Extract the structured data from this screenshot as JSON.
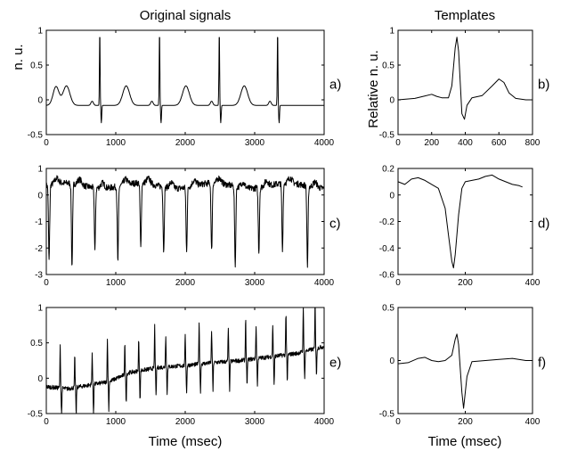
{
  "headers": {
    "left": "Original signals",
    "right": "Templates"
  },
  "ylabels": {
    "left": "n. u.",
    "right": "Relative n. u."
  },
  "xlabels": {
    "left": "Time (msec)",
    "right": "Time (msec)"
  },
  "chart_data": [
    {
      "id": "a",
      "type": "line",
      "panel_label": "a)",
      "xlim": [
        0,
        4000
      ],
      "ylim": [
        -0.5,
        1
      ],
      "xticks": [
        "0",
        "1000",
        "2000",
        "3000",
        "4000"
      ],
      "yticks": [
        "-0.5",
        "0",
        "0.5",
        "1"
      ],
      "series": [
        {
          "kind": "ecg",
          "beats": [
            770,
            1630,
            2490,
            3330
          ],
          "r_peak": 1.0,
          "q": -0.3,
          "noise": 0.0,
          "drift": 0.0
        }
      ]
    },
    {
      "id": "b",
      "type": "line",
      "panel_label": "b)",
      "xlim": [
        0,
        800
      ],
      "ylim": [
        -0.5,
        1
      ],
      "xticks": [
        "0",
        "200",
        "400",
        "600",
        "800"
      ],
      "yticks": [
        "-0.5",
        "0",
        "0.5",
        "1"
      ],
      "series": [
        {
          "kind": "template",
          "x": [
            0,
            100,
            150,
            200,
            230,
            260,
            300,
            320,
            340,
            350,
            360,
            380,
            395,
            410,
            440,
            500,
            560,
            600,
            630,
            660,
            700,
            760,
            800
          ],
          "y": [
            0.0,
            0.02,
            0.05,
            0.08,
            0.05,
            0.03,
            0.03,
            0.2,
            0.75,
            0.9,
            0.7,
            -0.2,
            -0.28,
            -0.08,
            0.03,
            0.06,
            0.2,
            0.3,
            0.25,
            0.1,
            0.02,
            0.0,
            0.0
          ]
        }
      ]
    },
    {
      "id": "c",
      "type": "line",
      "panel_label": "c)",
      "xlim": [
        0,
        4000
      ],
      "ylim": [
        -3,
        1
      ],
      "xticks": [
        "0",
        "1000",
        "2000",
        "3000",
        "4000"
      ],
      "yticks": [
        "-3",
        "-2",
        "-1",
        "0",
        "1"
      ],
      "series": [
        {
          "kind": "ecg_neg",
          "beats": [
            40,
            370,
            700,
            1030,
            1360,
            1690,
            2020,
            2380,
            2720,
            3060,
            3400,
            3760
          ],
          "depths": [
            -2.5,
            -2.8,
            -2.0,
            -2.5,
            -2.1,
            -2.1,
            -2.0,
            -2.2,
            -2.6,
            -2.1,
            -2.2,
            -2.7
          ],
          "baseline": 0.35,
          "noise": 0.12
        }
      ]
    },
    {
      "id": "d",
      "type": "line",
      "panel_label": "d)",
      "xlim": [
        0,
        400
      ],
      "ylim": [
        -0.6,
        0.2
      ],
      "xticks": [
        "0",
        "200",
        "400"
      ],
      "yticks": [
        "-0.6",
        "-0.4",
        "-0.2",
        "0",
        "0.2"
      ],
      "series": [
        {
          "kind": "template",
          "x": [
            0,
            20,
            40,
            60,
            80,
            100,
            120,
            140,
            150,
            160,
            165,
            170,
            180,
            190,
            200,
            220,
            240,
            260,
            280,
            300,
            320,
            340,
            360,
            370
          ],
          "y": [
            0.1,
            0.08,
            0.12,
            0.13,
            0.11,
            0.08,
            0.05,
            -0.1,
            -0.3,
            -0.5,
            -0.55,
            -0.45,
            -0.15,
            0.05,
            0.1,
            0.11,
            0.12,
            0.14,
            0.15,
            0.12,
            0.1,
            0.08,
            0.07,
            0.06
          ]
        }
      ]
    },
    {
      "id": "e",
      "type": "line",
      "panel_label": "e)",
      "xlim": [
        0,
        4000
      ],
      "ylim": [
        -0.5,
        1
      ],
      "xticks": [
        "0",
        "1000",
        "2000",
        "3000",
        "4000"
      ],
      "yticks": [
        "-0.5",
        "0",
        "0.5",
        "1"
      ],
      "series": [
        {
          "kind": "ecg_drift",
          "beats": [
            200,
            410,
            660,
            880,
            1130,
            1330,
            1560,
            1720,
            2000,
            2200,
            2380,
            2620,
            2870,
            3020,
            3260,
            3450,
            3700,
            3870
          ],
          "baseline_x": [
            0,
            300,
            600,
            900,
            1200,
            1600,
            2000,
            2400,
            2800,
            3200,
            3600,
            4000
          ],
          "baseline_y": [
            -0.12,
            -0.15,
            -0.1,
            -0.05,
            0.08,
            0.15,
            0.18,
            0.22,
            0.25,
            0.3,
            0.35,
            0.45
          ],
          "r_height": 0.45,
          "s_depth": -0.4
        }
      ]
    },
    {
      "id": "f",
      "type": "line",
      "panel_label": "f)",
      "xlim": [
        0,
        400
      ],
      "ylim": [
        -0.5,
        0.5
      ],
      "xticks": [
        "0",
        "200",
        "400"
      ],
      "yticks": [
        "-0.5",
        "0",
        "0.5"
      ],
      "series": [
        {
          "kind": "template",
          "x": [
            0,
            30,
            60,
            80,
            100,
            120,
            140,
            160,
            170,
            175,
            180,
            190,
            195,
            205,
            220,
            260,
            300,
            340,
            380,
            400
          ],
          "y": [
            -0.03,
            -0.02,
            0.02,
            0.03,
            0.0,
            -0.01,
            0.0,
            0.05,
            0.2,
            0.25,
            0.15,
            -0.3,
            -0.45,
            -0.15,
            -0.01,
            0.0,
            0.01,
            0.02,
            0.0,
            0.0
          ]
        }
      ]
    }
  ]
}
